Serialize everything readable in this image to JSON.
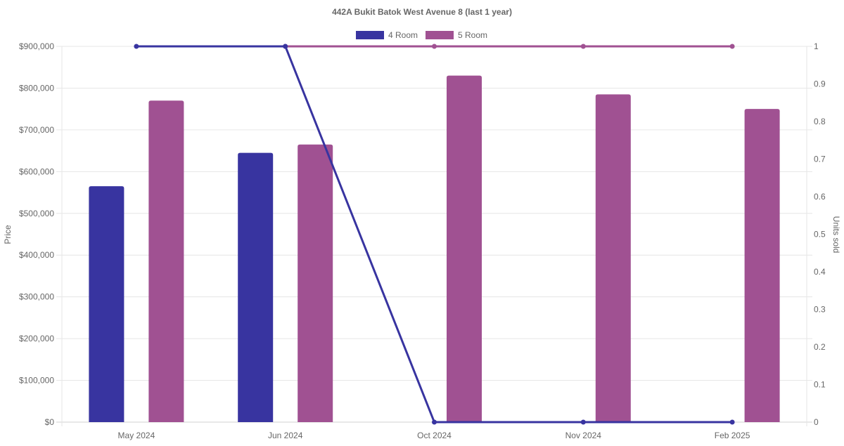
{
  "chart_data": {
    "type": "bar",
    "title": "442A Bukit Batok West Avenue 8 (last 1 year)",
    "categories": [
      "May 2024",
      "Jun 2024",
      "Oct 2024",
      "Nov 2024",
      "Feb 2025"
    ],
    "ylabel_left": "Price",
    "ylabel_right": "Units sold",
    "ylim_left": [
      0,
      900000
    ],
    "ylim_right": [
      0,
      1
    ],
    "yticks_left": [
      "$0",
      "$100,000",
      "$200,000",
      "$300,000",
      "$400,000",
      "$500,000",
      "$600,000",
      "$700,000",
      "$800,000",
      "$900,000"
    ],
    "yticks_right": [
      "0",
      "0.1",
      "0.2",
      "0.3",
      "0.4",
      "0.5",
      "0.6",
      "0.7",
      "0.8",
      "0.9",
      "1"
    ],
    "grid": true,
    "legend_position": "top",
    "series": [
      {
        "name": "4 Room",
        "color": "#3834a0",
        "price": [
          565000,
          645000,
          null,
          null,
          null
        ],
        "units_sold": [
          1,
          1,
          0,
          0,
          0
        ]
      },
      {
        "name": "5 Room",
        "color": "#a05192",
        "price": [
          770000,
          665000,
          830000,
          785000,
          750000
        ],
        "units_sold": [
          null,
          1,
          1,
          1,
          1
        ]
      }
    ]
  }
}
